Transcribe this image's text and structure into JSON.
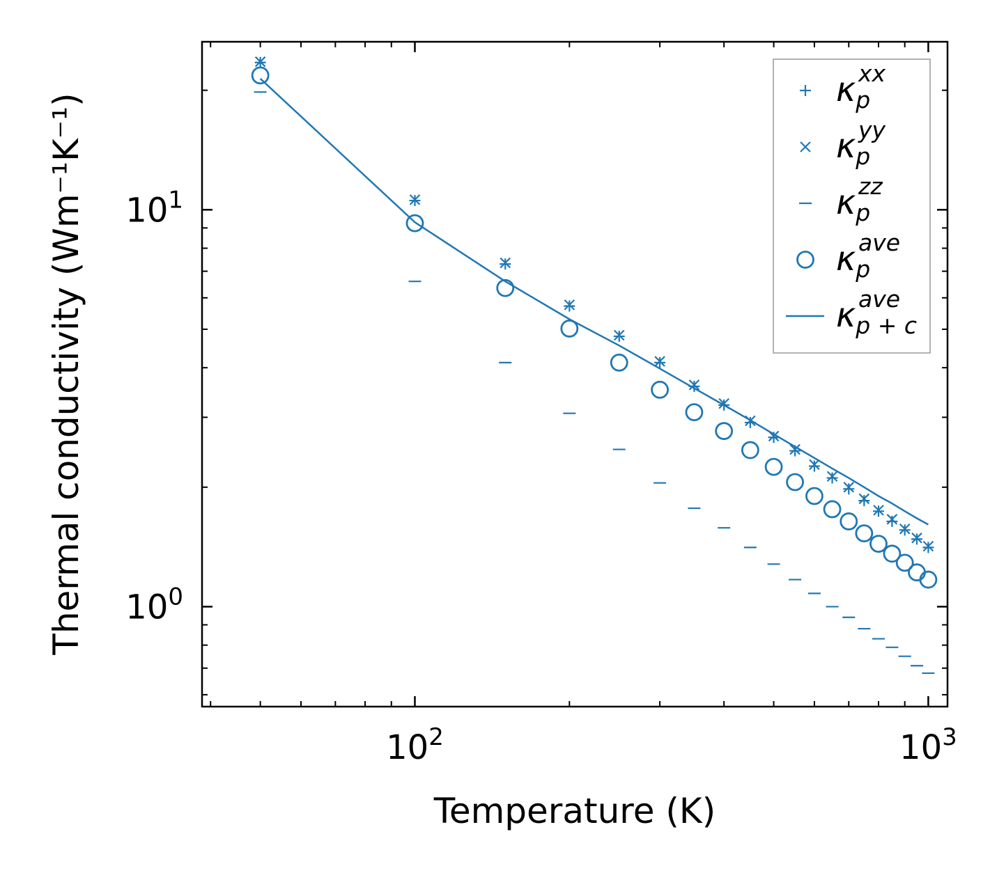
{
  "chart_data": {
    "type": "scatter",
    "xscale": "log",
    "yscale": "log",
    "xlabel": "Temperature (K)",
    "ylabel": "Thermal conductivity (Wm⁻¹K⁻¹)",
    "xlim": [
      38.5,
      1090
    ],
    "ylim": [
      0.56,
      26.5
    ],
    "xticks": [
      {
        "value": 100,
        "base": "10",
        "exp": "2"
      },
      {
        "value": 1000,
        "base": "10",
        "exp": "3"
      }
    ],
    "yticks": [
      {
        "value": 1,
        "base": "10",
        "exp": "0"
      },
      {
        "value": 10,
        "base": "10",
        "exp": "1"
      }
    ],
    "color": "#1f77b4",
    "legend_position": "top-right",
    "x": [
      50,
      100,
      150,
      200,
      250,
      300,
      350,
      400,
      450,
      500,
      550,
      600,
      650,
      700,
      750,
      800,
      850,
      900,
      950,
      1000
    ],
    "series": [
      {
        "name": "kappa_p_xx",
        "label_symbol": "κ",
        "label_sub": "p",
        "label_sup": "xx",
        "marker": "plus",
        "values": [
          23.5,
          10.55,
          7.3,
          5.72,
          4.8,
          4.12,
          3.59,
          3.22,
          2.91,
          2.67,
          2.47,
          2.26,
          2.11,
          1.98,
          1.85,
          1.74,
          1.64,
          1.56,
          1.48,
          1.41
        ]
      },
      {
        "name": "kappa_p_yy",
        "label_symbol": "κ",
        "label_sub": "p",
        "label_sup": "yy",
        "marker": "x",
        "values": [
          23.6,
          10.6,
          7.35,
          5.76,
          4.83,
          4.15,
          3.62,
          3.25,
          2.94,
          2.69,
          2.49,
          2.28,
          2.13,
          2.0,
          1.87,
          1.75,
          1.66,
          1.57,
          1.49,
          1.42
        ]
      },
      {
        "name": "kappa_p_zz",
        "label_symbol": "κ",
        "label_sub": "p",
        "label_sup": "zz",
        "marker": "hline",
        "values": [
          19.8,
          6.6,
          4.12,
          3.07,
          2.49,
          2.05,
          1.77,
          1.58,
          1.41,
          1.28,
          1.17,
          1.08,
          1.0,
          0.94,
          0.88,
          0.83,
          0.79,
          0.75,
          0.71,
          0.68
        ]
      },
      {
        "name": "kappa_p_ave",
        "label_symbol": "κ",
        "label_sub": "p",
        "label_sup": "ave",
        "marker": "circle",
        "values": [
          21.8,
          9.25,
          6.35,
          5.02,
          4.12,
          3.52,
          3.09,
          2.77,
          2.48,
          2.25,
          2.06,
          1.9,
          1.76,
          1.64,
          1.53,
          1.44,
          1.36,
          1.29,
          1.22,
          1.17
        ]
      },
      {
        "name": "kappa_pc_ave",
        "label_symbol": "κ",
        "label_sub": "p + c",
        "label_sup": "ave",
        "marker": "line",
        "values": [
          21.4,
          9.3,
          6.6,
          5.3,
          4.55,
          3.98,
          3.55,
          3.22,
          2.95,
          2.72,
          2.53,
          2.37,
          2.23,
          2.11,
          2.0,
          1.9,
          1.82,
          1.74,
          1.67,
          1.61
        ]
      }
    ]
  }
}
